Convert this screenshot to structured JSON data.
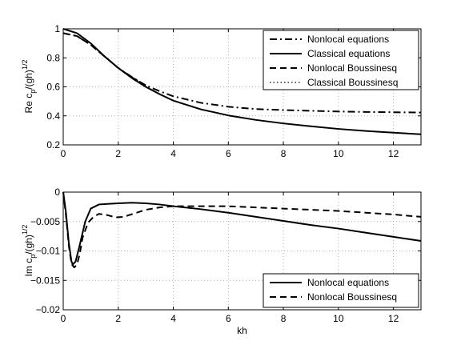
{
  "chart_data": [
    {
      "type": "line",
      "title": "",
      "xlabel": "",
      "ylabel": {
        "main": "Re c",
        "sub": "p",
        "denom": "/(gh)",
        "sup": "1/2"
      },
      "xlim": [
        0,
        13
      ],
      "ylim": [
        0.2,
        1.0
      ],
      "xticks": [
        0,
        2,
        4,
        6,
        8,
        10,
        12
      ],
      "xtick_labels": [
        "0",
        "2",
        "4",
        "6",
        "8",
        "10",
        "12"
      ],
      "yticks": [
        0.2,
        0.4,
        0.6,
        0.8,
        1.0
      ],
      "ytick_labels": [
        "0.2",
        "0.4",
        "0.6",
        "0.8",
        "1"
      ],
      "grid": true,
      "legend_position": "top-right",
      "series": [
        {
          "name": "Nonlocal equations",
          "style": "dashdot",
          "x": [
            0,
            0.5,
            1.0,
            1.5,
            2.0,
            2.5,
            3.0,
            3.5,
            4.0,
            5.0,
            6.0,
            7.0,
            8.0,
            9.0,
            10.0,
            11.0,
            12.0,
            13.0
          ],
          "y": [
            0.97,
            0.95,
            0.89,
            0.81,
            0.73,
            0.667,
            0.61,
            0.57,
            0.535,
            0.49,
            0.463,
            0.447,
            0.44,
            0.435,
            0.43,
            0.427,
            0.425,
            0.423
          ]
        },
        {
          "name": "Classical equations",
          "style": "solid",
          "x": [
            0,
            0.5,
            1.0,
            1.5,
            2.0,
            2.5,
            3.0,
            3.5,
            4.0,
            5.0,
            6.0,
            7.0,
            8.0,
            9.0,
            10.0,
            11.0,
            12.0,
            13.0
          ],
          "y": [
            1.0,
            0.97,
            0.9,
            0.81,
            0.73,
            0.66,
            0.6,
            0.55,
            0.505,
            0.445,
            0.403,
            0.372,
            0.348,
            0.328,
            0.31,
            0.296,
            0.284,
            0.273
          ]
        },
        {
          "name": "Nonlocal Boussinesq",
          "style": "dashed",
          "x": [
            0,
            0.5,
            1.0,
            1.5,
            2.0,
            2.5,
            3.0
          ],
          "y": [
            0.97,
            0.95,
            0.89,
            0.81,
            0.73,
            0.665,
            0.61
          ]
        },
        {
          "name": "Classical Boussinesq",
          "style": "dotted",
          "x": [
            0,
            0.5,
            1.0,
            1.5,
            2.0,
            2.5,
            3.0
          ],
          "y": [
            1.0,
            0.97,
            0.9,
            0.81,
            0.73,
            0.665,
            0.605
          ]
        }
      ]
    },
    {
      "type": "line",
      "title": "",
      "xlabel": "kh",
      "ylabel": {
        "main": "Im c",
        "sub": "p",
        "denom": "/(gh)",
        "sup": "1/2"
      },
      "xlim": [
        0,
        13
      ],
      "ylim": [
        -0.02,
        0
      ],
      "xticks": [
        0,
        2,
        4,
        6,
        8,
        10,
        12
      ],
      "xtick_labels": [
        "0",
        "2",
        "4",
        "6",
        "8",
        "10",
        "12"
      ],
      "yticks": [
        -0.02,
        -0.015,
        -0.01,
        -0.005,
        0
      ],
      "ytick_labels": [
        "−0.02",
        "−0.015",
        "−0.01",
        "−0.005",
        "0"
      ],
      "grid": true,
      "legend_position": "bottom-right",
      "series": [
        {
          "name": "Nonlocal equations",
          "style": "solid",
          "x": [
            0,
            0.1,
            0.2,
            0.3,
            0.35,
            0.45,
            0.6,
            0.8,
            1.0,
            1.3,
            1.6,
            2.0,
            2.5,
            3.0,
            3.5,
            4.0,
            5.0,
            6.0,
            7.0,
            8.0,
            9.0,
            10.0,
            11.0,
            12.0,
            13.0
          ],
          "y": [
            0,
            -0.0035,
            -0.0085,
            -0.0118,
            -0.0123,
            -0.0118,
            -0.009,
            -0.005,
            -0.0028,
            -0.0021,
            -0.002,
            -0.0019,
            -0.0018,
            -0.0019,
            -0.0021,
            -0.0024,
            -0.0029,
            -0.0035,
            -0.0042,
            -0.0049,
            -0.0056,
            -0.0062,
            -0.0069,
            -0.0076,
            -0.0083
          ]
        },
        {
          "name": "Nonlocal Boussinesq",
          "style": "dashed",
          "x": [
            0,
            0.1,
            0.2,
            0.3,
            0.4,
            0.5,
            0.6,
            0.7,
            0.9,
            1.1,
            1.3,
            1.6,
            1.9,
            2.2,
            2.6,
            3.0,
            3.5,
            4.0,
            5.0,
            6.0,
            7.0,
            8.0,
            9.0,
            10.0,
            11.0,
            12.0,
            13.0
          ],
          "y": [
            0,
            -0.004,
            -0.009,
            -0.0122,
            -0.0128,
            -0.0123,
            -0.0105,
            -0.0078,
            -0.0052,
            -0.0042,
            -0.0037,
            -0.0039,
            -0.0043,
            -0.0042,
            -0.0036,
            -0.003,
            -0.0026,
            -0.0024,
            -0.0024,
            -0.0024,
            -0.0026,
            -0.0028,
            -0.003,
            -0.0032,
            -0.0035,
            -0.0038,
            -0.0042
          ]
        }
      ]
    }
  ]
}
